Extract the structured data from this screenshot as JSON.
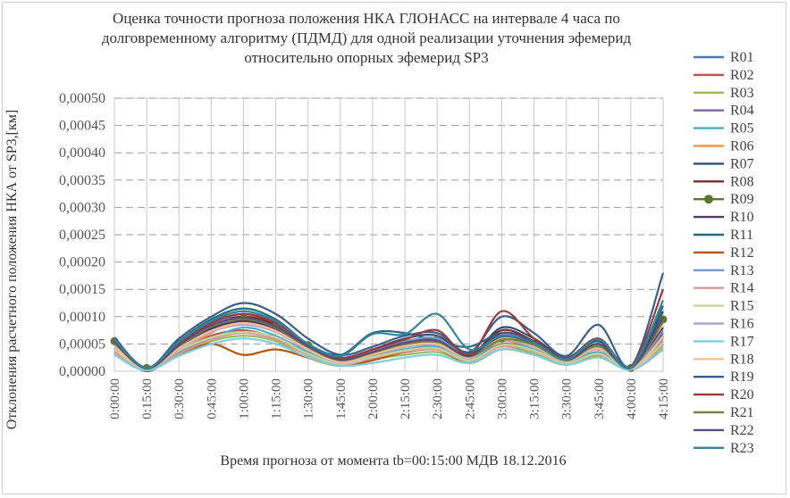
{
  "chart_data": {
    "type": "line",
    "title_lines": [
      "Оценка точности прогноза положения НКА ГЛОНАСС на интервале 4 часа по",
      "долговременному алгоритму (ПДМД) для одной реализации уточнения эфемерид",
      "относительно опорных эфемерид SP3"
    ],
    "xlabel": "Время прогноза от момента tb=00:15:00 МДВ 18.12.2016",
    "ylabel": "Отклонения расчетного положения НКА от SP3,[км]",
    "ylim": [
      0,
      0.0005
    ],
    "y_ticks": [
      "0,00000",
      "0,00005",
      "0,00010",
      "0,00015",
      "0,00020",
      "0,00025",
      "0,00030",
      "0,00035",
      "0,00040",
      "0,00045",
      "0,00050"
    ],
    "x_ticks": [
      "0:00:00",
      "0:15:00",
      "0:30:00",
      "0:45:00",
      "1:00:00",
      "1:15:00",
      "1:30:00",
      "1:45:00",
      "2:00:00",
      "2:15:00",
      "2:30:00",
      "2:45:00",
      "3:00:00",
      "3:15:00",
      "3:30:00",
      "3:45:00",
      "4:00:00",
      "4:15:00"
    ],
    "x_hours": [
      0,
      0.25,
      0.5,
      0.75,
      1.0,
      1.25,
      1.5,
      1.75,
      2.0,
      2.25,
      2.5,
      2.75,
      3.0,
      3.25,
      3.5,
      3.75,
      4.0,
      4.25
    ],
    "grid": true,
    "legend_position": "right",
    "series": [
      {
        "name": "R01",
        "color": "#4e79b4",
        "values": [
          4.5e-05,
          0.0,
          4e-05,
          7.5e-05,
          9e-05,
          7.5e-05,
          4e-05,
          1.5e-05,
          3e-05,
          4.5e-05,
          5e-05,
          3.5e-05,
          6e-05,
          4.5e-05,
          2e-05,
          4e-05,
          5e-06,
          6e-05
        ]
      },
      {
        "name": "R02",
        "color": "#c0504d",
        "values": [
          4e-05,
          4e-06,
          3.8e-05,
          6.5e-05,
          7.5e-05,
          6e-05,
          3e-05,
          1.2e-05,
          2.5e-05,
          3.5e-05,
          4e-05,
          2e-05,
          5e-05,
          3.8e-05,
          1.5e-05,
          3e-05,
          4e-06,
          5e-05
        ]
      },
      {
        "name": "R03",
        "color": "#9bbb59",
        "values": [
          3.5e-05,
          3e-06,
          3e-05,
          5.5e-05,
          6.5e-05,
          5.5e-05,
          2.5e-05,
          1e-05,
          2.2e-05,
          3e-05,
          3.5e-05,
          1.8e-05,
          4.5e-05,
          3.2e-05,
          1.2e-05,
          2.8e-05,
          3e-06,
          4.5e-05
        ]
      },
      {
        "name": "R04",
        "color": "#8064a2",
        "values": [
          5e-05,
          5e-06,
          4.5e-05,
          8e-05,
          9.5e-05,
          8e-05,
          4.5e-05,
          2e-05,
          3.5e-05,
          5e-05,
          5.5e-05,
          2.5e-05,
          6.5e-05,
          5e-05,
          2e-05,
          4.5e-05,
          6e-06,
          7e-05
        ]
      },
      {
        "name": "R05",
        "color": "#4bacc6",
        "values": [
          3e-05,
          2e-06,
          3.5e-05,
          6e-05,
          8e-05,
          6.5e-05,
          3.5e-05,
          1.5e-05,
          2.8e-05,
          4e-05,
          4.5e-05,
          2.2e-05,
          5.5e-05,
          4e-05,
          1.8e-05,
          3.5e-05,
          4e-06,
          5.5e-05
        ]
      },
      {
        "name": "R06",
        "color": "#f79646",
        "values": [
          4.5e-05,
          4e-06,
          4e-05,
          7e-05,
          0.0001,
          8.5e-05,
          4e-05,
          1.8e-05,
          3e-05,
          4.5e-05,
          5e-05,
          3e-05,
          5.5e-05,
          4.5e-05,
          2e-05,
          4e-05,
          5e-06,
          6e-05
        ]
      },
      {
        "name": "R07",
        "color": "#2c4d75",
        "values": [
          6e-05,
          6e-06,
          5e-05,
          9e-05,
          0.00011,
          9e-05,
          5e-05,
          2.5e-05,
          4e-05,
          6e-05,
          6.5e-05,
          3e-05,
          8e-05,
          6e-05,
          2.5e-05,
          5.5e-05,
          8e-06,
          0.00011
        ]
      },
      {
        "name": "R08",
        "color": "#772c2a",
        "values": [
          5.5e-05,
          5e-06,
          4.5e-05,
          8.5e-05,
          0.0001,
          8.5e-05,
          4.5e-05,
          2.2e-05,
          3.8e-05,
          5.5e-05,
          6e-05,
          2.8e-05,
          7.5e-05,
          5.5e-05,
          2.2e-05,
          5e-05,
          7e-06,
          8e-05
        ]
      },
      {
        "name": "R09",
        "color": "#5f7530",
        "marker": true,
        "values": [
          5.5e-05,
          6e-06,
          5e-05,
          8.5e-05,
          9.8e-05,
          8.2e-05,
          4.8e-05,
          2e-05,
          3.5e-05,
          5.2e-05,
          5.8e-05,
          3e-05,
          6e-05,
          5e-05,
          2.2e-05,
          4.5e-05,
          6e-06,
          9.5e-05
        ]
      },
      {
        "name": "R10",
        "color": "#4d3b62",
        "values": [
          5e-05,
          4e-06,
          4.5e-05,
          7.8e-05,
          9.2e-05,
          7.8e-05,
          4.2e-05,
          1.8e-05,
          3.2e-05,
          4.8e-05,
          5.2e-05,
          2.6e-05,
          6.2e-05,
          4.8e-05,
          2e-05,
          4.4e-05,
          5e-06,
          6.5e-05
        ]
      },
      {
        "name": "R11",
        "color": "#276a7c",
        "values": [
          6e-05,
          5e-06,
          5.5e-05,
          9.5e-05,
          0.000115,
          9.5e-05,
          5e-05,
          3e-05,
          7e-05,
          7e-05,
          5.5e-05,
          4.5e-05,
          7e-05,
          5.5e-05,
          2.5e-05,
          6e-05,
          8e-06,
          0.00012
        ]
      },
      {
        "name": "R12",
        "color": "#b65708",
        "values": [
          4e-05,
          3e-06,
          3e-05,
          5e-05,
          3e-05,
          4e-05,
          2.5e-05,
          1e-05,
          2e-05,
          3.5e-05,
          4e-05,
          1.5e-05,
          4e-05,
          3e-05,
          1.2e-05,
          3e-05,
          3e-06,
          4e-05
        ]
      },
      {
        "name": "R13",
        "color": "#729aca",
        "values": [
          5e-05,
          4e-06,
          4.5e-05,
          8.5e-05,
          0.000105,
          8.8e-05,
          4.5e-05,
          2.2e-05,
          3.6e-05,
          5.5e-05,
          6e-05,
          2.8e-05,
          6.8e-05,
          5.2e-05,
          2.2e-05,
          4.8e-05,
          6e-06,
          7.5e-05
        ]
      },
      {
        "name": "R14",
        "color": "#d99694",
        "values": [
          3.5e-05,
          3e-06,
          3.2e-05,
          5.8e-05,
          7e-05,
          5.8e-05,
          3e-05,
          1.2e-05,
          2.4e-05,
          3.6e-05,
          4e-05,
          1.8e-05,
          4.6e-05,
          3.6e-05,
          1.4e-05,
          3e-05,
          4e-06,
          4.8e-05
        ]
      },
      {
        "name": "R15",
        "color": "#c3d69b",
        "values": [
          4e-05,
          4e-06,
          3.8e-05,
          6.2e-05,
          7.2e-05,
          6.2e-05,
          3.2e-05,
          1.4e-05,
          2.6e-05,
          3.8e-05,
          4.2e-05,
          2e-05,
          4.8e-05,
          3.8e-05,
          1.5e-05,
          3.2e-05,
          4e-06,
          5.2e-05
        ]
      },
      {
        "name": "R16",
        "color": "#b3a2c7",
        "values": [
          4.5e-05,
          4e-06,
          4e-05,
          7.2e-05,
          8.5e-05,
          7.2e-05,
          3.8e-05,
          1.6e-05,
          3e-05,
          4.4e-05,
          4.8e-05,
          2.4e-05,
          5.8e-05,
          4.4e-05,
          1.8e-05,
          4e-05,
          5e-06,
          6.2e-05
        ]
      },
      {
        "name": "R17",
        "color": "#7ccfe0",
        "values": [
          3e-05,
          2e-06,
          2.8e-05,
          5e-05,
          6e-05,
          5e-05,
          2.6e-05,
          1e-05,
          1.5e-05,
          2.5e-05,
          3e-05,
          1.5e-05,
          4e-05,
          3e-05,
          1.2e-05,
          2.5e-05,
          3e-06,
          4e-05
        ]
      },
      {
        "name": "R18",
        "color": "#fac090",
        "values": [
          4.5e-05,
          4e-06,
          4.2e-05,
          7.4e-05,
          8.8e-05,
          7.4e-05,
          4e-05,
          1.7e-05,
          3.1e-05,
          4.6e-05,
          5e-05,
          2.5e-05,
          6e-05,
          4.6e-05,
          1.9e-05,
          4.2e-05,
          5e-06,
          6.4e-05
        ]
      },
      {
        "name": "R19",
        "color": "#3a5f8b",
        "values": [
          6.2e-05,
          6e-06,
          6e-05,
          0.0001,
          0.000125,
          0.000105,
          6e-05,
          3e-05,
          4.5e-05,
          6.5e-05,
          7e-05,
          3.5e-05,
          0.0001,
          7e-05,
          2.8e-05,
          8.5e-05,
          9e-06,
          0.00018
        ]
      },
      {
        "name": "R20",
        "color": "#9b3b39",
        "values": [
          5.8e-05,
          6e-06,
          5.2e-05,
          8.8e-05,
          0.000105,
          8.8e-05,
          4.8e-05,
          2.4e-05,
          4e-05,
          5.8e-05,
          7.5e-05,
          3e-05,
          0.00011,
          6e-05,
          2.4e-05,
          6e-05,
          8e-06,
          0.00015
        ]
      },
      {
        "name": "R21",
        "color": "#71893f",
        "values": [
          5.2e-05,
          5e-06,
          4.6e-05,
          8.2e-05,
          9.6e-05,
          8e-05,
          4.4e-05,
          2e-05,
          3.4e-05,
          5e-05,
          5.4e-05,
          2.7e-05,
          5.8e-05,
          4.8e-05,
          2e-05,
          4.6e-05,
          6e-06,
          9e-05
        ]
      },
      {
        "name": "R22",
        "color": "#5e4a7c",
        "values": [
          5.4e-05,
          5e-06,
          4.8e-05,
          8.4e-05,
          9.8e-05,
          8.2e-05,
          4.6e-05,
          2.1e-05,
          3.5e-05,
          5.2e-05,
          5.6e-05,
          2.8e-05,
          7e-05,
          5.4e-05,
          2.1e-05,
          5e-05,
          6e-06,
          0.0001
        ]
      },
      {
        "name": "R23",
        "color": "#31859c",
        "values": [
          5.8e-05,
          6e-06,
          5.4e-05,
          9.2e-05,
          0.00011,
          9.2e-05,
          5e-05,
          2.8e-05,
          6.8e-05,
          6.8e-05,
          0.000105,
          4e-05,
          6.5e-05,
          5.2e-05,
          2.2e-05,
          5.8e-05,
          7e-06,
          0.00013
        ]
      }
    ]
  }
}
